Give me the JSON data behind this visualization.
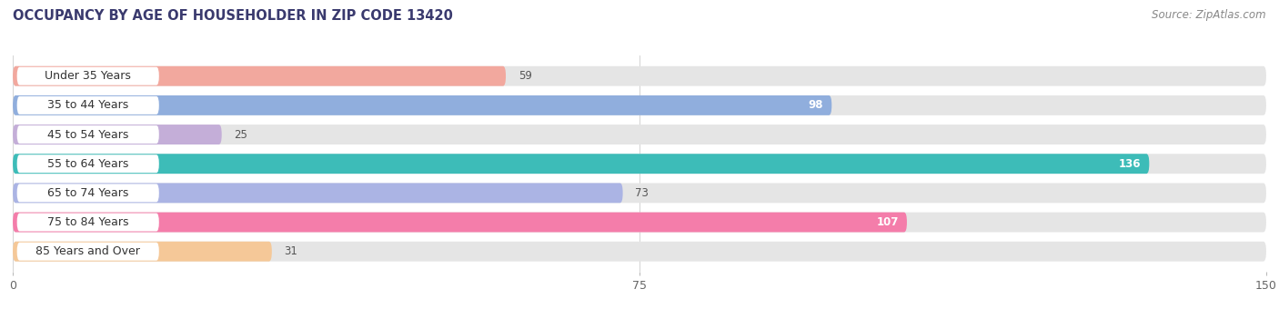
{
  "title": "OCCUPANCY BY AGE OF HOUSEHOLDER IN ZIP CODE 13420",
  "source": "Source: ZipAtlas.com",
  "categories": [
    "Under 35 Years",
    "35 to 44 Years",
    "45 to 54 Years",
    "55 to 64 Years",
    "65 to 74 Years",
    "75 to 84 Years",
    "85 Years and Over"
  ],
  "values": [
    59,
    98,
    25,
    136,
    73,
    107,
    31
  ],
  "bar_colors": [
    "#f2a89e",
    "#90aedd",
    "#c4aed8",
    "#3dbcb8",
    "#abb4e4",
    "#f47daa",
    "#f5c898"
  ],
  "bar_bg_color": "#e5e5e5",
  "label_bg_color": "#ffffff",
  "xlim_max": 150,
  "xticks": [
    0,
    75,
    150
  ],
  "title_fontsize": 10.5,
  "source_fontsize": 8.5,
  "label_fontsize": 9,
  "value_fontsize": 8.5,
  "figsize": [
    14.06,
    3.4
  ],
  "dpi": 100,
  "white_value_threshold": 85
}
